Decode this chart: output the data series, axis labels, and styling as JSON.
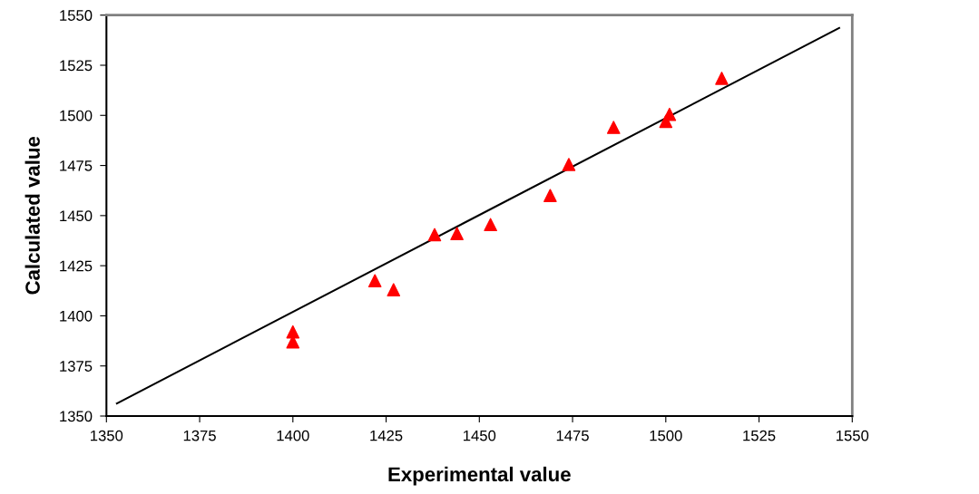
{
  "chart_data": {
    "type": "scatter",
    "xlabel": "Experimental value",
    "ylabel": "Calculated value",
    "xlim": [
      1350,
      1550
    ],
    "xticks": [
      1350,
      1375,
      1400,
      1425,
      1450,
      1475,
      1500,
      1525,
      1550
    ],
    "ylim": [
      1350,
      1550
    ],
    "yticks": [
      1350,
      1375,
      1400,
      1425,
      1450,
      1475,
      1500,
      1525,
      1550
    ],
    "grid": false,
    "series": [
      {
        "color": "#ff0000",
        "marker": "triangle",
        "x": [
          1400,
          1400,
          1422,
          1427,
          1438,
          1444,
          1453,
          1469,
          1474,
          1486,
          1500,
          1501,
          1515
        ],
        "values": [
          1392,
          1387,
          1417.5,
          1413,
          1440.5,
          1441,
          1445.5,
          1460,
          1475.5,
          1494,
          1497,
          1500.5,
          1518.5
        ]
      },
      {
        "type": "line",
        "color": "#000000",
        "marker": "none",
        "line_style": "solid",
        "x": [
          1352.8,
          1546.5
        ],
        "values": [
          1356.3,
          1543.6
        ]
      }
    ]
  }
}
